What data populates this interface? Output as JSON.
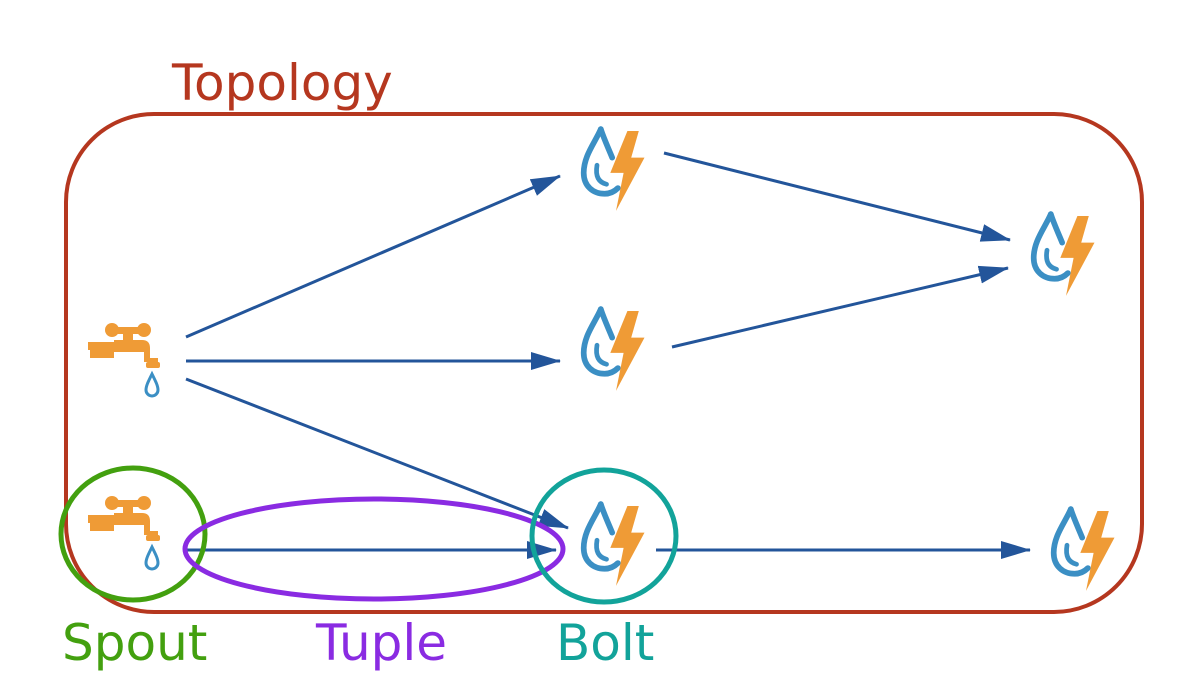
{
  "labels": {
    "topology": "Topology",
    "spout": "Spout",
    "tuple": "Tuple",
    "bolt": "Bolt"
  },
  "colors": {
    "topology": "#b5371f",
    "spout": "#43a00f",
    "tuple": "#8a2be2",
    "bolt": "#12a39a",
    "arrow": "#23559a",
    "icon_orange": "#ef9b36",
    "icon_blue": "#3b8fc4"
  },
  "nodes": [
    {
      "id": "spout-1",
      "kind": "spout",
      "icon": "faucet-icon"
    },
    {
      "id": "spout-2",
      "kind": "spout",
      "icon": "faucet-icon"
    },
    {
      "id": "bolt-1",
      "kind": "bolt",
      "icon": "drop-lightning-icon"
    },
    {
      "id": "bolt-2",
      "kind": "bolt",
      "icon": "drop-lightning-icon"
    },
    {
      "id": "bolt-3",
      "kind": "bolt",
      "icon": "drop-lightning-icon"
    },
    {
      "id": "bolt-4",
      "kind": "bolt",
      "icon": "drop-lightning-icon"
    },
    {
      "id": "bolt-5",
      "kind": "bolt",
      "icon": "drop-lightning-icon"
    }
  ],
  "edges": [
    {
      "from": "spout-1",
      "to": "bolt-1"
    },
    {
      "from": "spout-1",
      "to": "bolt-2"
    },
    {
      "from": "spout-1",
      "to": "bolt-3"
    },
    {
      "from": "bolt-1",
      "to": "bolt-4"
    },
    {
      "from": "bolt-2",
      "to": "bolt-4"
    },
    {
      "from": "spout-2",
      "to": "bolt-3"
    },
    {
      "from": "bolt-3",
      "to": "bolt-5"
    }
  ]
}
